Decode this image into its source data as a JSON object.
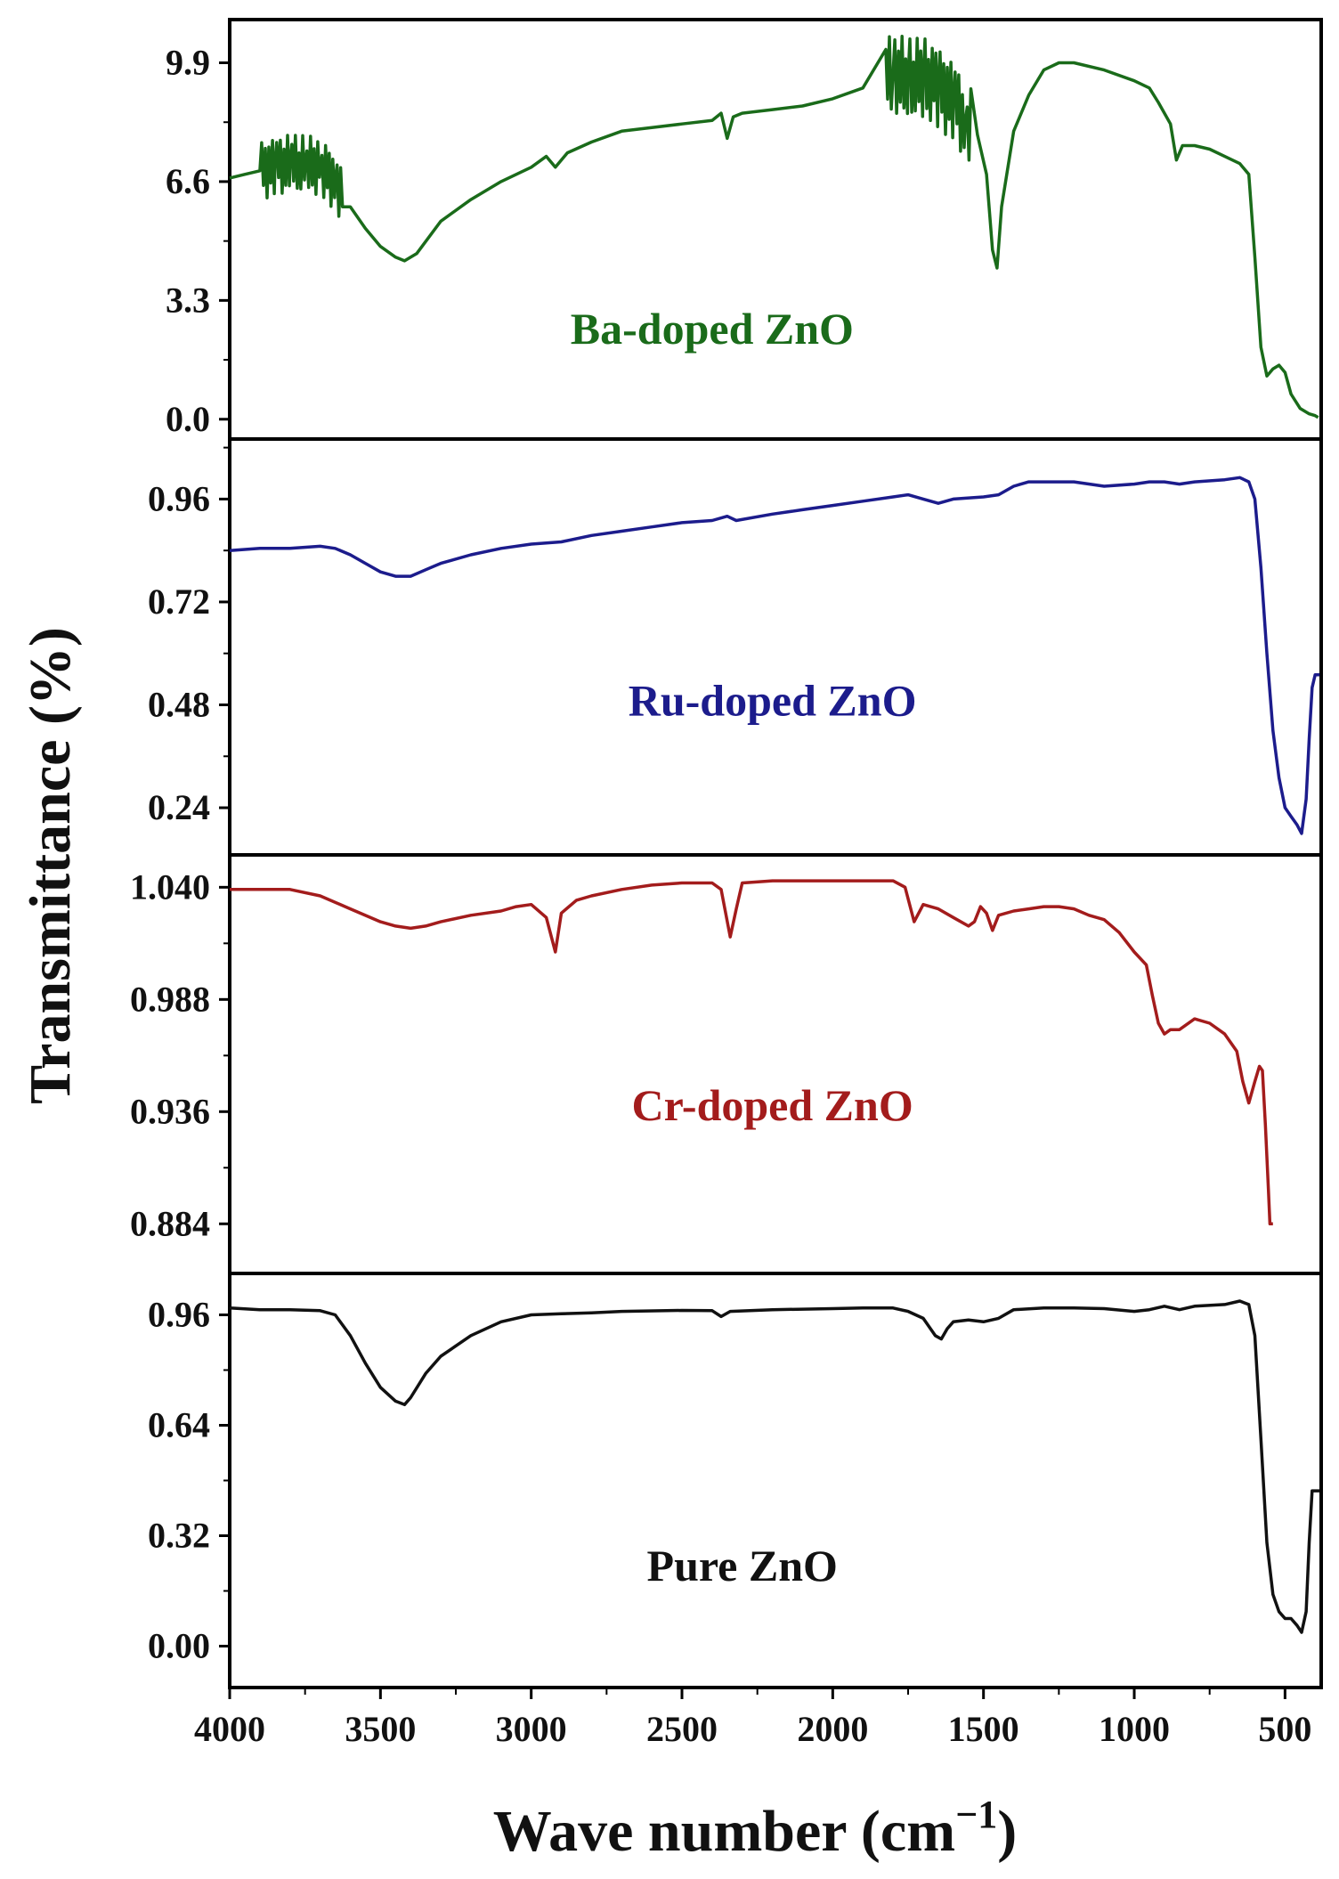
{
  "chart_data": {
    "type": "line",
    "ylabel": "Transmittance (%)",
    "xlabel_main": "Wave number (cm",
    "xlabel_sup": "−1",
    "xlabel_end": ")",
    "x_range": [
      4000,
      380
    ],
    "x_ticks": [
      {
        "value": 4000,
        "label": "4000"
      },
      {
        "value": 3500,
        "label": "3500"
      },
      {
        "value": 3000,
        "label": "3000"
      },
      {
        "value": 2500,
        "label": "2500"
      },
      {
        "value": 2000,
        "label": "2000"
      },
      {
        "value": 1500,
        "label": "1500"
      },
      {
        "value": 1000,
        "label": "1000"
      },
      {
        "value": 500,
        "label": "500"
      }
    ],
    "panels": [
      {
        "name": "Ba-doped ZnO",
        "color": "#1a6b1a",
        "label_pos": [
          2400,
          2.1
        ],
        "ylim": [
          -0.55,
          11.1
        ],
        "yticks": [
          {
            "value": 0.0,
            "label": "0.0"
          },
          {
            "value": 3.3,
            "label": "3.3"
          },
          {
            "value": 6.6,
            "label": "6.6"
          },
          {
            "value": 9.9,
            "label": "9.9"
          }
        ],
        "points": [
          [
            4000,
            6.7
          ],
          [
            3950,
            6.8
          ],
          [
            3900,
            6.9
          ],
          [
            3850,
            7.0
          ],
          [
            3800,
            7.1
          ],
          [
            3750,
            7.1
          ],
          [
            3700,
            7.0
          ],
          [
            3650,
            6.6
          ],
          [
            3600,
            5.9
          ],
          [
            3550,
            5.3
          ],
          [
            3500,
            4.8
          ],
          [
            3450,
            4.5
          ],
          [
            3420,
            4.4
          ],
          [
            3380,
            4.6
          ],
          [
            3300,
            5.5
          ],
          [
            3200,
            6.1
          ],
          [
            3100,
            6.6
          ],
          [
            3000,
            7.0
          ],
          [
            2950,
            7.3
          ],
          [
            2920,
            7.0
          ],
          [
            2880,
            7.4
          ],
          [
            2800,
            7.7
          ],
          [
            2700,
            8.0
          ],
          [
            2600,
            8.1
          ],
          [
            2500,
            8.2
          ],
          [
            2400,
            8.3
          ],
          [
            2370,
            8.5
          ],
          [
            2350,
            7.8
          ],
          [
            2330,
            8.4
          ],
          [
            2300,
            8.5
          ],
          [
            2200,
            8.6
          ],
          [
            2100,
            8.7
          ],
          [
            2000,
            8.9
          ],
          [
            1900,
            9.2
          ],
          [
            1800,
            9.6
          ],
          [
            1750,
            9.5
          ],
          [
            1700,
            9.5
          ],
          [
            1650,
            9.2
          ],
          [
            1600,
            8.8
          ],
          [
            1560,
            8.3
          ],
          [
            1520,
            7.9
          ],
          [
            1490,
            6.8
          ],
          [
            1470,
            4.7
          ],
          [
            1455,
            4.2
          ],
          [
            1440,
            5.9
          ],
          [
            1400,
            8.0
          ],
          [
            1350,
            9.0
          ],
          [
            1300,
            9.7
          ],
          [
            1250,
            9.9
          ],
          [
            1200,
            9.9
          ],
          [
            1100,
            9.7
          ],
          [
            1000,
            9.4
          ],
          [
            950,
            9.2
          ],
          [
            920,
            8.8
          ],
          [
            880,
            8.2
          ],
          [
            860,
            7.2
          ],
          [
            840,
            7.6
          ],
          [
            800,
            7.6
          ],
          [
            750,
            7.5
          ],
          [
            700,
            7.3
          ],
          [
            650,
            7.1
          ],
          [
            620,
            6.8
          ],
          [
            600,
            4.5
          ],
          [
            580,
            2.0
          ],
          [
            560,
            1.2
          ],
          [
            540,
            1.4
          ],
          [
            520,
            1.5
          ],
          [
            500,
            1.3
          ],
          [
            480,
            0.7
          ],
          [
            450,
            0.3
          ],
          [
            420,
            0.15
          ],
          [
            400,
            0.1
          ],
          [
            390,
            0.05
          ]
        ],
        "noise": [
          [
            3900,
            3620,
            0.8
          ],
          [
            1830,
            1540,
            1.1
          ]
        ]
      },
      {
        "name": "Ru-doped ZnO",
        "color": "#1c1c8c",
        "label_pos": [
          2200,
          0.455
        ],
        "ylim": [
          0.13,
          1.1
        ],
        "yticks": [
          {
            "value": 0.24,
            "label": "0.24"
          },
          {
            "value": 0.48,
            "label": "0.48"
          },
          {
            "value": 0.72,
            "label": "0.72"
          },
          {
            "value": 0.96,
            "label": "0.96"
          }
        ],
        "points": [
          [
            4000,
            0.84
          ],
          [
            3900,
            0.845
          ],
          [
            3800,
            0.845
          ],
          [
            3700,
            0.85
          ],
          [
            3650,
            0.845
          ],
          [
            3600,
            0.83
          ],
          [
            3550,
            0.81
          ],
          [
            3500,
            0.79
          ],
          [
            3450,
            0.78
          ],
          [
            3400,
            0.78
          ],
          [
            3350,
            0.795
          ],
          [
            3300,
            0.81
          ],
          [
            3200,
            0.83
          ],
          [
            3100,
            0.845
          ],
          [
            3000,
            0.855
          ],
          [
            2900,
            0.86
          ],
          [
            2800,
            0.875
          ],
          [
            2700,
            0.885
          ],
          [
            2600,
            0.895
          ],
          [
            2500,
            0.905
          ],
          [
            2400,
            0.91
          ],
          [
            2350,
            0.92
          ],
          [
            2320,
            0.91
          ],
          [
            2200,
            0.925
          ],
          [
            2100,
            0.935
          ],
          [
            2000,
            0.945
          ],
          [
            1900,
            0.955
          ],
          [
            1800,
            0.965
          ],
          [
            1750,
            0.97
          ],
          [
            1700,
            0.96
          ],
          [
            1650,
            0.95
          ],
          [
            1600,
            0.96
          ],
          [
            1500,
            0.965
          ],
          [
            1450,
            0.97
          ],
          [
            1400,
            0.99
          ],
          [
            1350,
            1.0
          ],
          [
            1300,
            1.0
          ],
          [
            1200,
            1.0
          ],
          [
            1100,
            0.99
          ],
          [
            1000,
            0.995
          ],
          [
            950,
            1.0
          ],
          [
            900,
            1.0
          ],
          [
            850,
            0.995
          ],
          [
            800,
            1.0
          ],
          [
            700,
            1.005
          ],
          [
            650,
            1.01
          ],
          [
            620,
            1.0
          ],
          [
            600,
            0.96
          ],
          [
            580,
            0.8
          ],
          [
            560,
            0.6
          ],
          [
            540,
            0.42
          ],
          [
            520,
            0.31
          ],
          [
            500,
            0.24
          ],
          [
            480,
            0.22
          ],
          [
            460,
            0.2
          ],
          [
            445,
            0.18
          ],
          [
            430,
            0.26
          ],
          [
            420,
            0.4
          ],
          [
            410,
            0.52
          ],
          [
            400,
            0.55
          ],
          [
            385,
            0.55
          ]
        ]
      },
      {
        "name": "Cr-doped ZnO",
        "color": "#a31c1c",
        "label_pos": [
          2200,
          0.932
        ],
        "ylim": [
          0.861,
          1.055
        ],
        "yticks": [
          {
            "value": 0.884,
            "label": "0.884"
          },
          {
            "value": 0.936,
            "label": "0.936"
          },
          {
            "value": 0.988,
            "label": "0.988"
          },
          {
            "value": 1.04,
            "label": "1.040"
          }
        ],
        "points": [
          [
            4000,
            1.039
          ],
          [
            3900,
            1.039
          ],
          [
            3800,
            1.039
          ],
          [
            3700,
            1.036
          ],
          [
            3600,
            1.03
          ],
          [
            3500,
            1.024
          ],
          [
            3450,
            1.022
          ],
          [
            3400,
            1.021
          ],
          [
            3350,
            1.022
          ],
          [
            3300,
            1.024
          ],
          [
            3200,
            1.027
          ],
          [
            3100,
            1.029
          ],
          [
            3050,
            1.031
          ],
          [
            3000,
            1.032
          ],
          [
            2950,
            1.026
          ],
          [
            2920,
            1.01
          ],
          [
            2900,
            1.028
          ],
          [
            2850,
            1.034
          ],
          [
            2800,
            1.036
          ],
          [
            2700,
            1.039
          ],
          [
            2600,
            1.041
          ],
          [
            2500,
            1.042
          ],
          [
            2400,
            1.042
          ],
          [
            2370,
            1.039
          ],
          [
            2340,
            1.017
          ],
          [
            2320,
            1.03
          ],
          [
            2300,
            1.042
          ],
          [
            2200,
            1.043
          ],
          [
            2100,
            1.043
          ],
          [
            2000,
            1.043
          ],
          [
            1900,
            1.043
          ],
          [
            1800,
            1.043
          ],
          [
            1760,
            1.04
          ],
          [
            1730,
            1.024
          ],
          [
            1700,
            1.032
          ],
          [
            1650,
            1.03
          ],
          [
            1600,
            1.026
          ],
          [
            1550,
            1.022
          ],
          [
            1530,
            1.024
          ],
          [
            1510,
            1.031
          ],
          [
            1490,
            1.028
          ],
          [
            1470,
            1.02
          ],
          [
            1450,
            1.027
          ],
          [
            1400,
            1.029
          ],
          [
            1350,
            1.03
          ],
          [
            1300,
            1.031
          ],
          [
            1250,
            1.031
          ],
          [
            1200,
            1.03
          ],
          [
            1150,
            1.027
          ],
          [
            1100,
            1.025
          ],
          [
            1050,
            1.019
          ],
          [
            1000,
            1.01
          ],
          [
            960,
            1.004
          ],
          [
            940,
            0.99
          ],
          [
            920,
            0.977
          ],
          [
            900,
            0.972
          ],
          [
            880,
            0.974
          ],
          [
            850,
            0.974
          ],
          [
            800,
            0.979
          ],
          [
            750,
            0.977
          ],
          [
            700,
            0.972
          ],
          [
            660,
            0.964
          ],
          [
            640,
            0.95
          ],
          [
            620,
            0.94
          ],
          [
            600,
            0.95
          ],
          [
            585,
            0.957
          ],
          [
            575,
            0.955
          ],
          [
            565,
            0.93
          ],
          [
            555,
            0.9
          ],
          [
            550,
            0.884
          ],
          [
            540,
            0.884
          ]
        ]
      },
      {
        "name": "Pure ZnO",
        "color": "#111111",
        "label_pos": [
          2300,
          0.19
        ],
        "ylim": [
          -0.12,
          1.08
        ],
        "yticks": [
          {
            "value": 0.0,
            "label": "0.00"
          },
          {
            "value": 0.32,
            "label": "0.32"
          },
          {
            "value": 0.64,
            "label": "0.64"
          },
          {
            "value": 0.96,
            "label": "0.96"
          }
        ],
        "points": [
          [
            4000,
            0.98
          ],
          [
            3900,
            0.975
          ],
          [
            3800,
            0.975
          ],
          [
            3700,
            0.972
          ],
          [
            3650,
            0.96
          ],
          [
            3600,
            0.9
          ],
          [
            3550,
            0.82
          ],
          [
            3500,
            0.75
          ],
          [
            3450,
            0.71
          ],
          [
            3420,
            0.7
          ],
          [
            3400,
            0.72
          ],
          [
            3350,
            0.79
          ],
          [
            3300,
            0.84
          ],
          [
            3200,
            0.9
          ],
          [
            3100,
            0.94
          ],
          [
            3000,
            0.96
          ],
          [
            2900,
            0.963
          ],
          [
            2800,
            0.966
          ],
          [
            2700,
            0.97
          ],
          [
            2500,
            0.973
          ],
          [
            2400,
            0.972
          ],
          [
            2370,
            0.955
          ],
          [
            2340,
            0.97
          ],
          [
            2200,
            0.975
          ],
          [
            2000,
            0.978
          ],
          [
            1900,
            0.98
          ],
          [
            1800,
            0.98
          ],
          [
            1750,
            0.97
          ],
          [
            1700,
            0.95
          ],
          [
            1660,
            0.9
          ],
          [
            1640,
            0.89
          ],
          [
            1620,
            0.92
          ],
          [
            1600,
            0.94
          ],
          [
            1550,
            0.945
          ],
          [
            1500,
            0.94
          ],
          [
            1450,
            0.95
          ],
          [
            1400,
            0.975
          ],
          [
            1300,
            0.98
          ],
          [
            1200,
            0.98
          ],
          [
            1100,
            0.978
          ],
          [
            1000,
            0.97
          ],
          [
            950,
            0.975
          ],
          [
            900,
            0.985
          ],
          [
            850,
            0.975
          ],
          [
            800,
            0.985
          ],
          [
            700,
            0.99
          ],
          [
            650,
            1.0
          ],
          [
            620,
            0.99
          ],
          [
            600,
            0.9
          ],
          [
            580,
            0.6
          ],
          [
            560,
            0.3
          ],
          [
            540,
            0.15
          ],
          [
            520,
            0.1
          ],
          [
            500,
            0.08
          ],
          [
            480,
            0.08
          ],
          [
            460,
            0.06
          ],
          [
            445,
            0.04
          ],
          [
            430,
            0.1
          ],
          [
            420,
            0.3
          ],
          [
            410,
            0.45
          ],
          [
            400,
            0.45
          ],
          [
            385,
            0.45
          ]
        ]
      }
    ]
  }
}
